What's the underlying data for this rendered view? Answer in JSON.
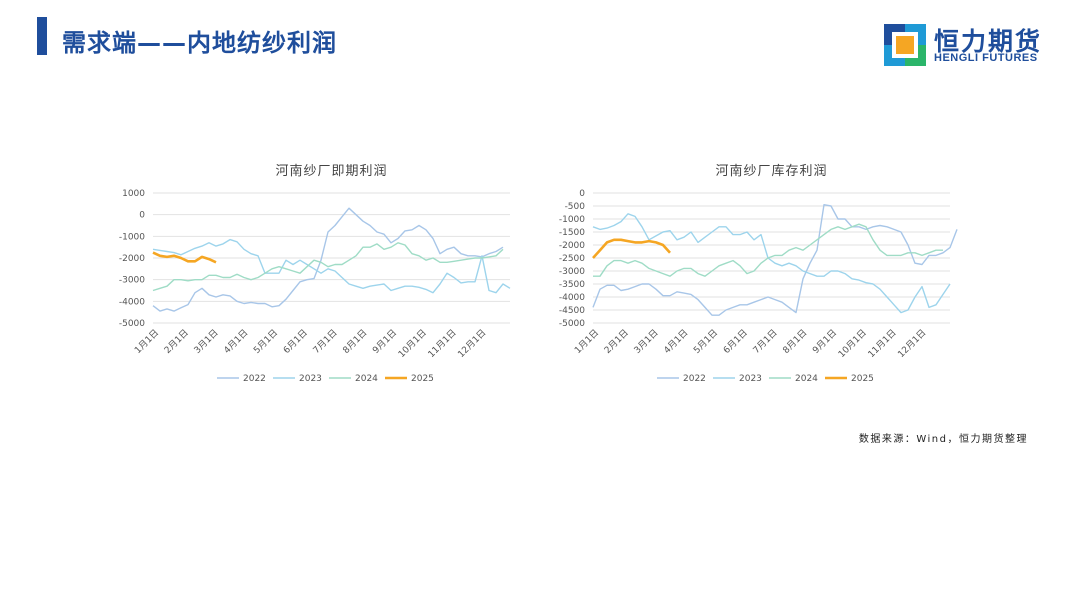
{
  "header": {
    "title": "需求端——内地纺纱利润",
    "logo_cn": "恒力期货",
    "logo_en": "HENGLI FUTURES"
  },
  "footer": {
    "source": "数据来源：Wind，恒力期货整理"
  },
  "colors": {
    "2022": "#a8c6e8",
    "2023": "#9dd4ec",
    "2024": "#9fdcc6",
    "2025": "#f5a623",
    "brand": "#1f4e9c"
  },
  "chart_data": [
    {
      "type": "line",
      "title": "河南纱厂即期利润",
      "ylim": [
        -5000,
        1000
      ],
      "yticks": [
        1000,
        0,
        -1000,
        -2000,
        -3000,
        -4000,
        -5000
      ],
      "xticks": [
        "1月1日",
        "2月1日",
        "3月1日",
        "4月1日",
        "5月1日",
        "6月1日",
        "7月1日",
        "8月1日",
        "9月1日",
        "10月1日",
        "11月1日",
        "12月1日"
      ],
      "grid": true,
      "legend_position": "bottom",
      "series": [
        {
          "name": "2022",
          "values": [
            -4200,
            -4450,
            -4350,
            -4450,
            -4300,
            -4150,
            -3600,
            -3400,
            -3700,
            -3800,
            -3700,
            -3750,
            -4000,
            -4100,
            -4050,
            -4100,
            -4100,
            -4250,
            -4200,
            -3900,
            -3500,
            -3100,
            -3000,
            -2950,
            -2100,
            -800,
            -500,
            -100,
            300,
            0,
            -300,
            -500,
            -800,
            -900,
            -1300,
            -1100,
            -750,
            -700,
            -500,
            -700,
            -1100,
            -1800,
            -1600,
            -1500,
            -1800,
            -1900,
            -1900,
            -1950,
            -1800,
            -1700,
            -1500
          ]
        },
        {
          "name": "2023",
          "values": [
            -1600,
            -1650,
            -1700,
            -1750,
            -1850,
            -1700,
            -1550,
            -1450,
            -1300,
            -1450,
            -1350,
            -1150,
            -1250,
            -1600,
            -1800,
            -1900,
            -2700,
            -2700,
            -2700,
            -2100,
            -2300,
            -2100,
            -2300,
            -2500,
            -2700,
            -2500,
            -2600,
            -2900,
            -3200,
            -3300,
            -3400,
            -3300,
            -3250,
            -3200,
            -3500,
            -3400,
            -3300,
            -3300,
            -3350,
            -3450,
            -3600,
            -3200,
            -2700,
            -2900,
            -3150,
            -3100,
            -3100,
            -1900,
            -3500,
            -3600,
            -3200,
            -3400
          ]
        },
        {
          "name": "2024",
          "values": [
            -3500,
            -3400,
            -3300,
            -3000,
            -3000,
            -3050,
            -3000,
            -3000,
            -2800,
            -2800,
            -2900,
            -2900,
            -2750,
            -2900,
            -3000,
            -2900,
            -2700,
            -2500,
            -2400,
            -2500,
            -2600,
            -2700,
            -2400,
            -2100,
            -2200,
            -2400,
            -2300,
            -2300,
            -2100,
            -1900,
            -1500,
            -1500,
            -1350,
            -1600,
            -1500,
            -1300,
            -1400,
            -1800,
            -1900,
            -2100,
            -2000,
            -2200,
            -2200,
            -2150,
            -2100,
            -2050,
            -2000,
            -2000,
            -1950,
            -1900,
            -1600
          ]
        },
        {
          "name": "2025",
          "values": [
            -1750,
            -1900,
            -1950,
            -1900,
            -2000,
            -2150,
            -2150,
            -1950,
            -2050,
            -2200
          ]
        }
      ]
    },
    {
      "type": "line",
      "title": "河南纱厂库存利润",
      "ylim": [
        -5000,
        0
      ],
      "yticks": [
        0,
        -500,
        -1000,
        -1500,
        -2000,
        -2500,
        -3000,
        -3500,
        -4000,
        -4500,
        -5000
      ],
      "xticks": [
        "1月1日",
        "2月1日",
        "3月1日",
        "4月1日",
        "5月1日",
        "6月1日",
        "7月1日",
        "8月1日",
        "9月1日",
        "10月1日",
        "11月1日",
        "12月1日"
      ],
      "grid": true,
      "legend_position": "bottom",
      "series": [
        {
          "name": "2022",
          "values": [
            -4400,
            -3700,
            -3550,
            -3550,
            -3750,
            -3700,
            -3600,
            -3500,
            -3500,
            -3700,
            -3950,
            -3950,
            -3800,
            -3850,
            -3900,
            -4100,
            -4400,
            -4700,
            -4700,
            -4500,
            -4400,
            -4300,
            -4300,
            -4200,
            -4100,
            -4000,
            -4100,
            -4200,
            -4400,
            -4600,
            -3300,
            -2700,
            -2200,
            -450,
            -500,
            -1000,
            -1000,
            -1300,
            -1300,
            -1400,
            -1300,
            -1250,
            -1300,
            -1400,
            -1500,
            -2000,
            -2700,
            -2750,
            -2400,
            -2400,
            -2300,
            -2100,
            -1400
          ]
        },
        {
          "name": "2023",
          "values": [
            -1300,
            -1400,
            -1350,
            -1250,
            -1100,
            -800,
            -900,
            -1300,
            -1800,
            -1650,
            -1500,
            -1450,
            -1800,
            -1700,
            -1500,
            -1900,
            -1700,
            -1500,
            -1300,
            -1300,
            -1600,
            -1600,
            -1500,
            -1800,
            -1600,
            -2500,
            -2700,
            -2800,
            -2700,
            -2800,
            -3000,
            -3100,
            -3200,
            -3200,
            -3000,
            -3000,
            -3100,
            -3300,
            -3350,
            -3450,
            -3500,
            -3700,
            -4000,
            -4300,
            -4600,
            -4500,
            -4000,
            -3600,
            -4400,
            -4300,
            -3900,
            -3500
          ]
        },
        {
          "name": "2024",
          "values": [
            -3200,
            -3200,
            -2800,
            -2600,
            -2600,
            -2700,
            -2600,
            -2700,
            -2900,
            -3000,
            -3100,
            -3200,
            -3000,
            -2900,
            -2900,
            -3100,
            -3200,
            -3000,
            -2800,
            -2700,
            -2600,
            -2800,
            -3100,
            -3000,
            -2700,
            -2500,
            -2400,
            -2400,
            -2200,
            -2100,
            -2200,
            -2000,
            -1800,
            -1600,
            -1400,
            -1300,
            -1400,
            -1300,
            -1200,
            -1300,
            -1800,
            -2200,
            -2400,
            -2400,
            -2400,
            -2300,
            -2300,
            -2400,
            -2300,
            -2200,
            -2200
          ]
        },
        {
          "name": "2025",
          "values": [
            -2500,
            -2200,
            -1900,
            -1800,
            -1800,
            -1850,
            -1900,
            -1900,
            -1850,
            -1900,
            -2000,
            -2300
          ]
        }
      ]
    }
  ]
}
